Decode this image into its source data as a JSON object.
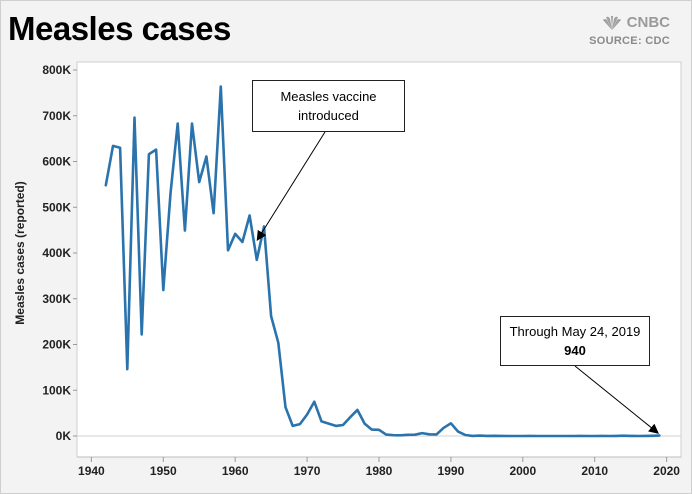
{
  "header": {
    "title": "Measles cases",
    "brand": "CNBC",
    "source": "SOURCE: CDC"
  },
  "annotations": {
    "vaccine": {
      "line1": "Measles vaccine",
      "line2": "introduced"
    },
    "through": {
      "line1": "Through May 24, 2019",
      "value": "940"
    }
  },
  "colors": {
    "line": "#2a73ad",
    "background": "#ffffff",
    "panel": "#f3f3f3"
  },
  "chart_data": {
    "type": "line",
    "title": "Measles cases",
    "ylabel": "Measles cases (reported)",
    "xlabel": "",
    "xlim": [
      1938,
      2022
    ],
    "ylim": [
      0,
      800000
    ],
    "x_ticks": [
      1940,
      1950,
      1960,
      1970,
      1980,
      1990,
      2000,
      2010,
      2020
    ],
    "y_ticks": [
      0,
      100000,
      200000,
      300000,
      400000,
      500000,
      600000,
      700000,
      800000
    ],
    "y_tick_labels": [
      "0K",
      "100K",
      "200K",
      "300K",
      "400K",
      "500K",
      "600K",
      "700K",
      "800K"
    ],
    "grid": "horizontal-zero-only",
    "series": [
      {
        "x": [
          1942,
          1943,
          1944,
          1945,
          1946,
          1947,
          1948,
          1949,
          1950,
          1951,
          1952,
          1953,
          1954,
          1955,
          1956,
          1957,
          1958,
          1959,
          1960,
          1961,
          1962,
          1963,
          1964,
          1965,
          1966,
          1967,
          1968,
          1969,
          1970,
          1971,
          1972,
          1973,
          1974,
          1975,
          1976,
          1977,
          1978,
          1979,
          1980,
          1981,
          1982,
          1983,
          1984,
          1985,
          1986,
          1987,
          1988,
          1989,
          1990,
          1991,
          1992,
          1993,
          1994,
          1995,
          1996,
          1997,
          1998,
          1999,
          2000,
          2001,
          2002,
          2003,
          2004,
          2005,
          2006,
          2007,
          2008,
          2009,
          2010,
          2011,
          2012,
          2013,
          2014,
          2015,
          2016,
          2017,
          2018,
          2019
        ],
        "values": [
          548000,
          634000,
          630000,
          146000,
          696000,
          222000,
          616000,
          626000,
          319000,
          530000,
          683000,
          449000,
          683000,
          555000,
          611000,
          487000,
          764000,
          406000,
          442000,
          424000,
          482000,
          385000,
          458000,
          262000,
          204000,
          63000,
          22000,
          26000,
          47000,
          75000,
          32000,
          27000,
          22000,
          24000,
          41000,
          57000,
          27000,
          14000,
          13500,
          3100,
          1700,
          1500,
          2600,
          2800,
          6300,
          3700,
          3400,
          18000,
          27800,
          9600,
          2200,
          300,
          960,
          310,
          510,
          140,
          100,
          100,
          86,
          116,
          44,
          56,
          37,
          66,
          55,
          43,
          140,
          71,
          63,
          220,
          55,
          187,
          667,
          188,
          86,
          120,
          372,
          940
        ]
      }
    ],
    "annotations": [
      {
        "text": "Measles vaccine introduced",
        "x": 1963,
        "y": 430000
      },
      {
        "text": "Through May 24, 2019 940",
        "x": 2019,
        "y": 940
      }
    ]
  }
}
